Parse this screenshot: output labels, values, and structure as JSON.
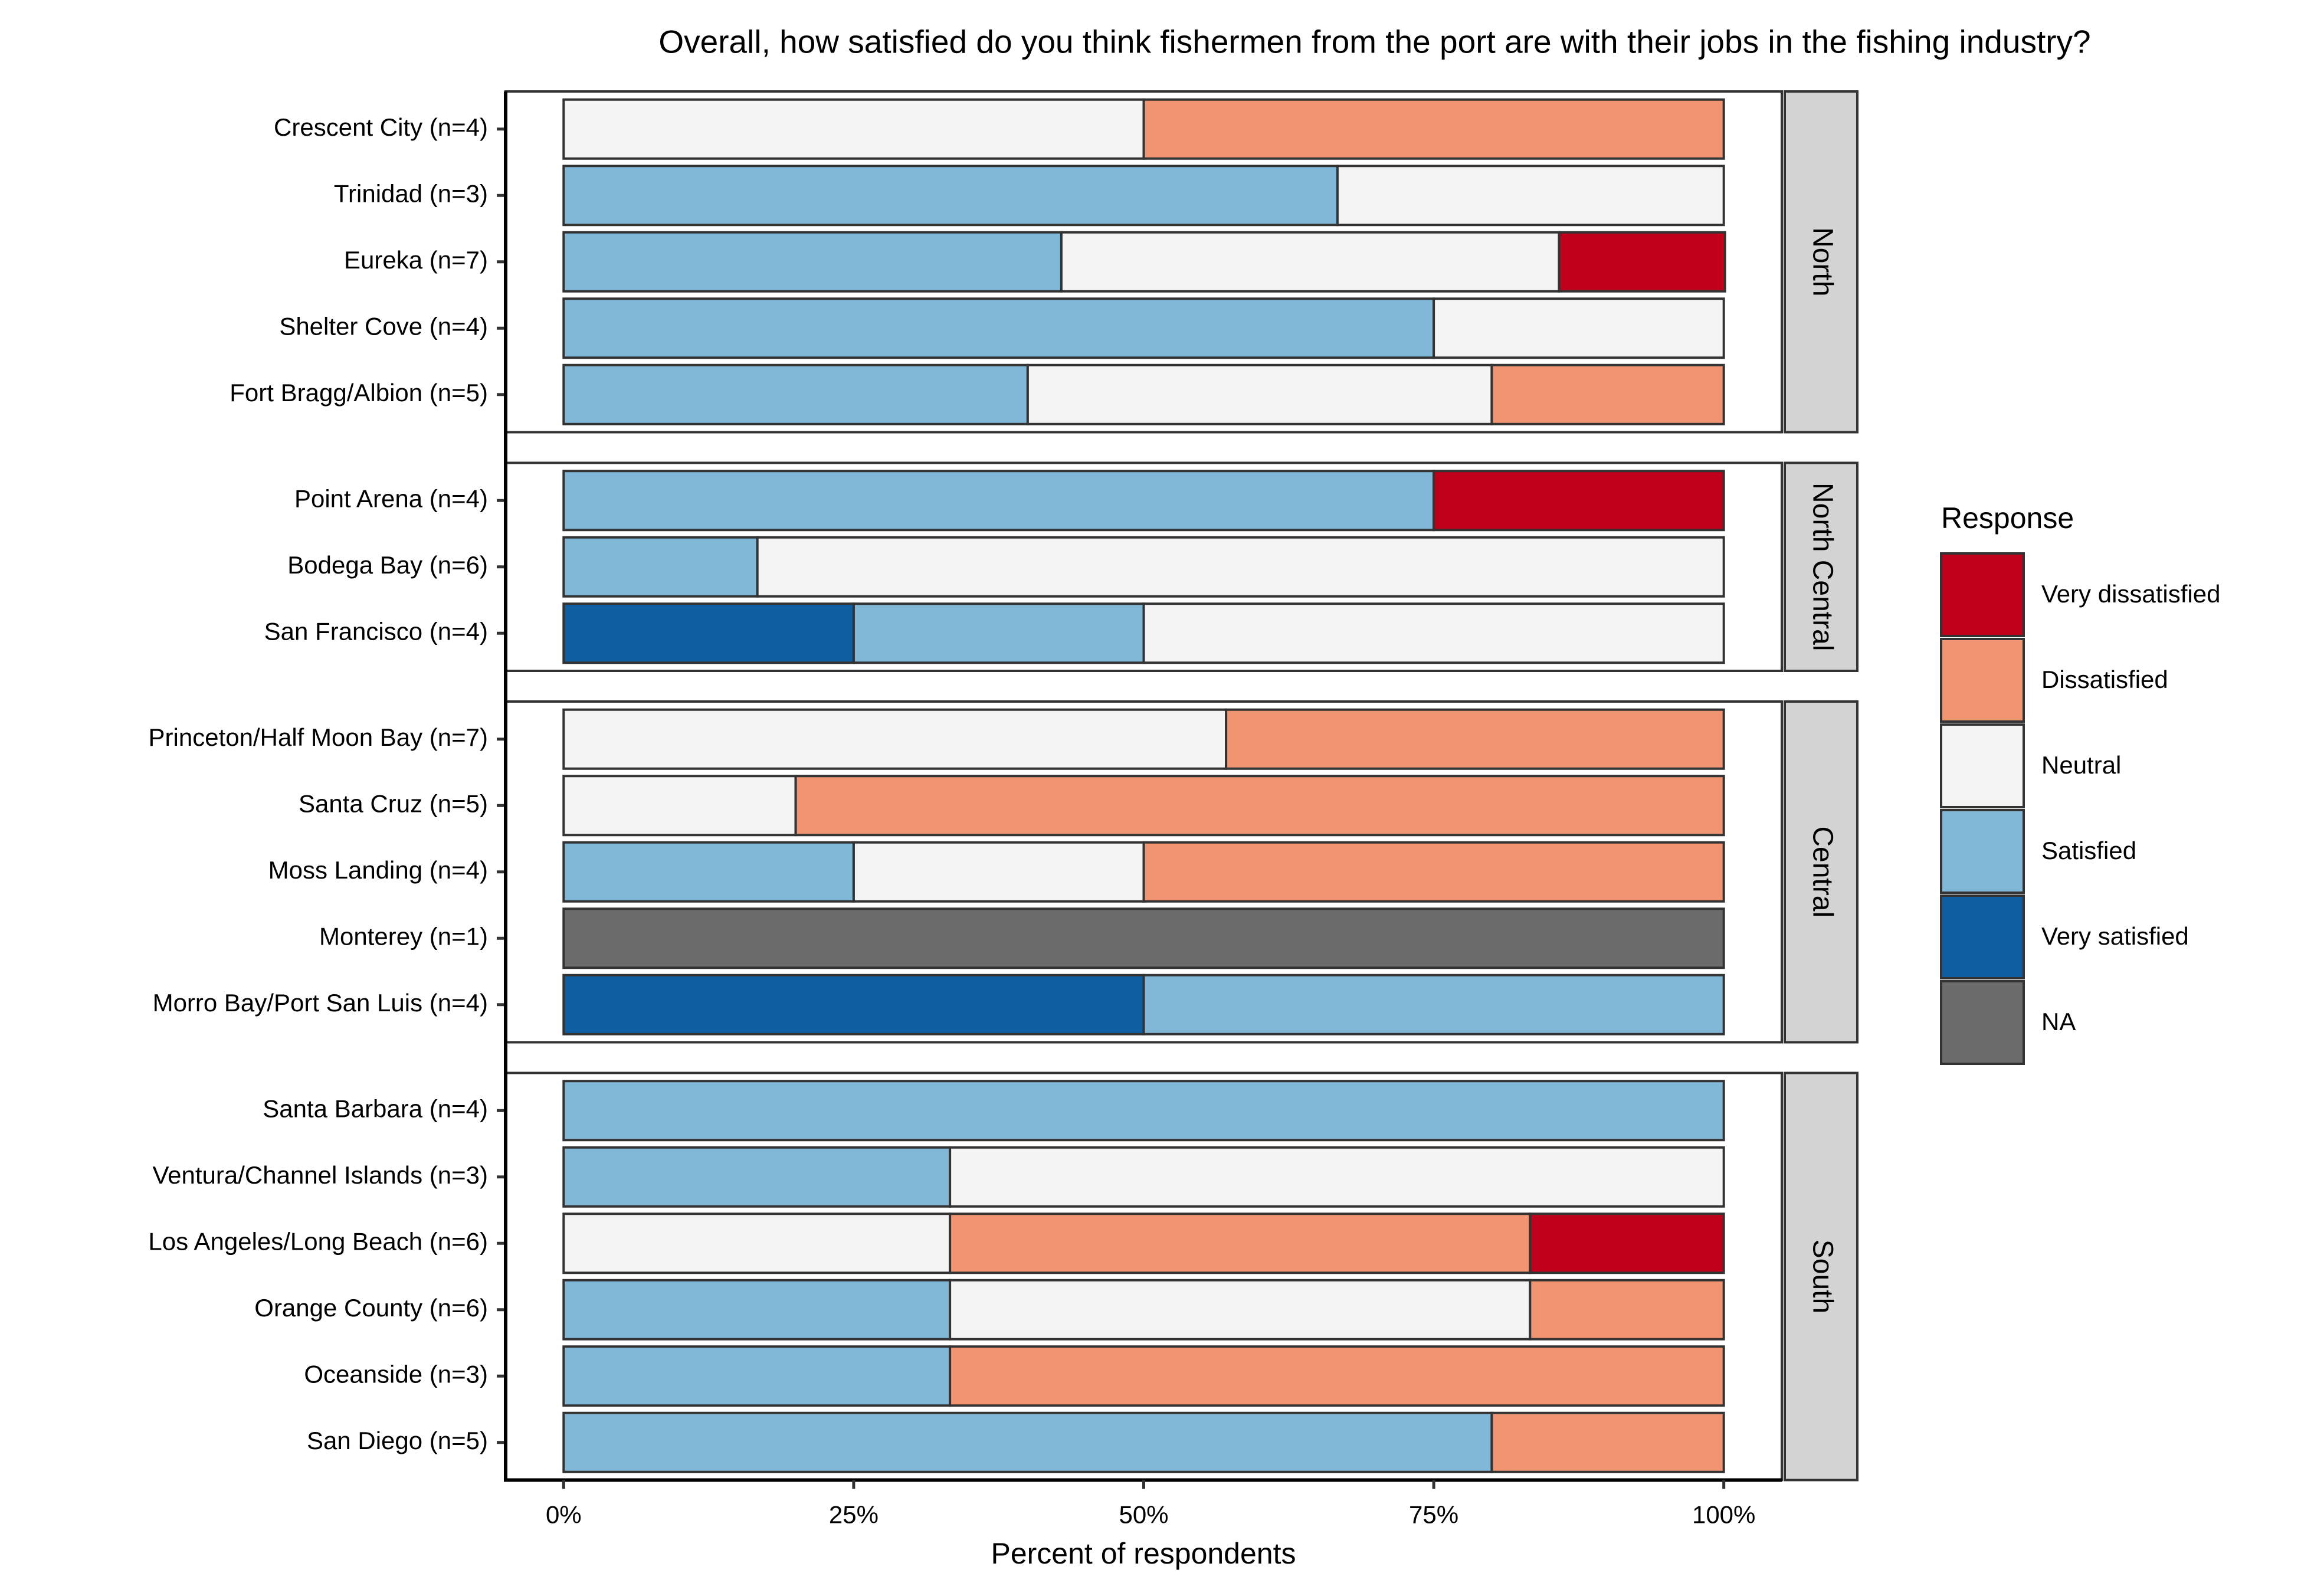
{
  "chart_data": {
    "type": "bar",
    "orientation": "horizontal",
    "stacked": true,
    "title": "Overall, how satisfied do you think fishermen from the port are with their jobs in the fishing industry?",
    "xlabel": "Percent of respondents",
    "legend_title": "Response",
    "legend_position": "right",
    "xlim": [
      -5,
      105
    ],
    "xticks": [
      {
        "value": 0,
        "label": "0%"
      },
      {
        "value": 25,
        "label": "25%"
      },
      {
        "value": 50,
        "label": "50%"
      },
      {
        "value": 75,
        "label": "75%"
      },
      {
        "value": 100,
        "label": "100%"
      }
    ],
    "panels": [
      {
        "name": "North",
        "categories": [
          "Crescent City (n=4)",
          "Trinidad (n=3)",
          "Eureka (n=7)",
          "Shelter Cove (n=4)",
          "Fort Bragg/Albion (n=5)"
        ]
      },
      {
        "name": "North Central",
        "categories": [
          "Point Arena (n=4)",
          "Bodega Bay (n=6)",
          "San Francisco (n=4)"
        ]
      },
      {
        "name": "Central",
        "categories": [
          "Princeton/Half Moon Bay (n=7)",
          "Santa Cruz (n=5)",
          "Moss Landing (n=4)",
          "Monterey (n=1)",
          "Morro Bay/Port San Luis (n=4)"
        ]
      },
      {
        "name": "South",
        "categories": [
          "Santa Barbara (n=4)",
          "Ventura/Channel Islands (n=3)",
          "Los Angeles/Long Beach (n=6)",
          "Orange County (n=6)",
          "Oceanside (n=3)",
          "San Diego (n=5)"
        ]
      }
    ],
    "series": [
      {
        "name": "Very dissatisfied",
        "color": "#c0001b",
        "values": [
          [
            0,
            0,
            14.3,
            0,
            0
          ],
          [
            25,
            0,
            0
          ],
          [
            0,
            0,
            0,
            0,
            0
          ],
          [
            0,
            0,
            16.7,
            0,
            0,
            0
          ]
        ]
      },
      {
        "name": "Dissatisfied",
        "color": "#f09472",
        "values": [
          [
            50,
            0,
            0,
            0,
            20
          ],
          [
            0,
            0,
            0
          ],
          [
            42.9,
            80,
            50,
            0,
            0
          ],
          [
            0,
            0,
            50,
            16.7,
            66.7,
            20
          ]
        ]
      },
      {
        "name": "Neutral",
        "color": "#f4f4f4",
        "values": [
          [
            50,
            33.3,
            42.9,
            25,
            40
          ],
          [
            0,
            83.3,
            50
          ],
          [
            57.1,
            20,
            25,
            0,
            0
          ],
          [
            0,
            66.7,
            33.3,
            50,
            0,
            0
          ]
        ]
      },
      {
        "name": "Satisfied",
        "color": "#82b8d7",
        "values": [
          [
            0,
            66.7,
            42.9,
            75,
            40
          ],
          [
            75,
            16.7,
            25
          ],
          [
            0,
            0,
            25,
            0,
            50
          ],
          [
            100,
            33.3,
            0,
            33.3,
            33.3,
            80
          ]
        ]
      },
      {
        "name": "Very satisfied",
        "color": "#0f5ea1",
        "values": [
          [
            0,
            0,
            0,
            0,
            0
          ],
          [
            0,
            0,
            25
          ],
          [
            0,
            0,
            0,
            0,
            50
          ],
          [
            0,
            0,
            0,
            0,
            0,
            0
          ]
        ]
      },
      {
        "name": "NA",
        "color": "#6b6b6b",
        "values": [
          [
            0,
            0,
            0,
            0,
            0
          ],
          [
            0,
            0,
            0
          ],
          [
            0,
            0,
            0,
            100,
            0
          ],
          [
            0,
            0,
            0,
            0,
            0,
            0
          ]
        ]
      }
    ]
  }
}
